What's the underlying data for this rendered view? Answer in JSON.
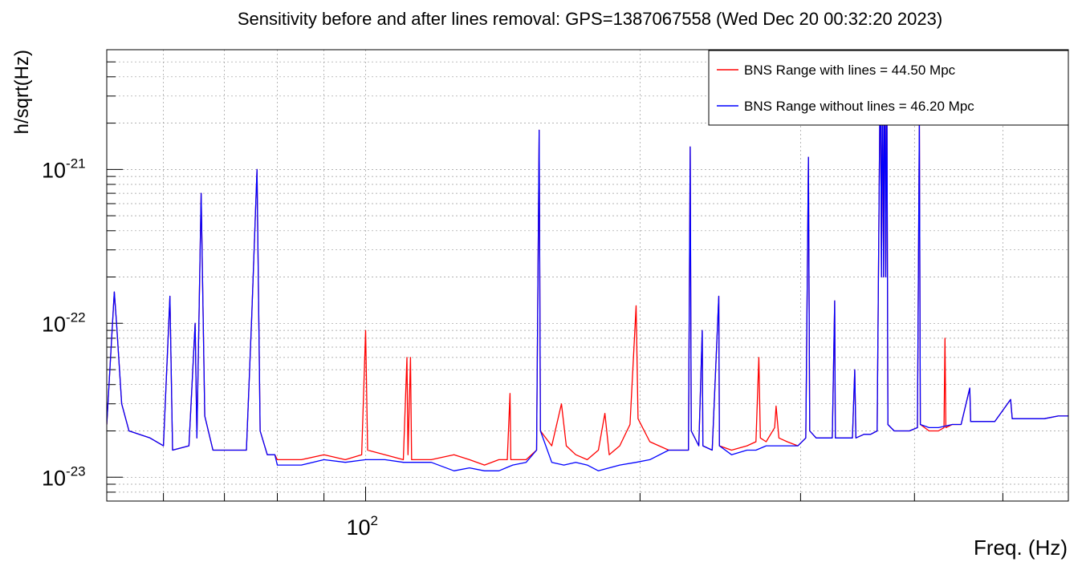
{
  "chart_data": {
    "type": "line",
    "title": "Sensitivity before and after lines removal: GPS=1387067558 (Wed Dec 20 00:32:20 2023)",
    "xlabel": "Freq. (Hz)",
    "ylabel": "h/sqrt(Hz)",
    "x_scale": "log",
    "y_scale": "log",
    "xlim": [
      52,
      590
    ],
    "ylim": [
      7e-24,
      6e-21
    ],
    "grid": true,
    "x_ticks": [
      {
        "value": 100,
        "base": "10",
        "exp": "2"
      }
    ],
    "y_ticks": [
      {
        "value": 1e-23,
        "base": "10",
        "exp": "-23"
      },
      {
        "value": 1e-22,
        "base": "10",
        "exp": "-22"
      },
      {
        "value": 1e-21,
        "base": "10",
        "exp": "-21"
      }
    ],
    "legend_position": "top-right",
    "series": [
      {
        "name": "BNS Range with lines = 44.50 Mpc",
        "color": "#ff0000",
        "points": [
          [
            52,
            2.2e-23
          ],
          [
            53,
            1.6e-22
          ],
          [
            53.3,
            1e-22
          ],
          [
            54,
            3e-23
          ],
          [
            55,
            2e-23
          ],
          [
            58,
            1.8e-23
          ],
          [
            60,
            1.6e-23
          ],
          [
            61,
            1.5e-22
          ],
          [
            61.4,
            1.5e-23
          ],
          [
            64,
            1.6e-23
          ],
          [
            65,
            1e-22
          ],
          [
            65.3,
            1.8e-23
          ],
          [
            66,
            7e-22
          ],
          [
            66.6,
            2.5e-23
          ],
          [
            68,
            1.5e-23
          ],
          [
            74,
            1.5e-23
          ],
          [
            75,
            1.1e-22
          ],
          [
            76,
            1e-21
          ],
          [
            76.6,
            2e-23
          ],
          [
            78,
            1.4e-23
          ],
          [
            79.5,
            1.4e-23
          ],
          [
            80,
            1.3e-23
          ],
          [
            85,
            1.3e-23
          ],
          [
            90,
            1.4e-23
          ],
          [
            95,
            1.3e-23
          ],
          [
            99,
            1.4e-23
          ],
          [
            100,
            9e-23
          ],
          [
            100.5,
            1.5e-23
          ],
          [
            105,
            1.4e-23
          ],
          [
            110,
            1.3e-23
          ],
          [
            111,
            6e-23
          ],
          [
            111.3,
            1.4e-23
          ],
          [
            112,
            6e-23
          ],
          [
            112.3,
            1.3e-23
          ],
          [
            118,
            1.3e-23
          ],
          [
            125,
            1.4e-23
          ],
          [
            130,
            1.3e-23
          ],
          [
            135,
            1.2e-23
          ],
          [
            140,
            1.3e-23
          ],
          [
            143,
            1.3e-23
          ],
          [
            144,
            3.5e-23
          ],
          [
            144.3,
            1.3e-23
          ],
          [
            150,
            1.3e-23
          ],
          [
            154,
            1.5e-23
          ],
          [
            155,
            1.8e-21
          ],
          [
            155.5,
            2e-23
          ],
          [
            160,
            1.6e-23
          ],
          [
            164,
            3e-23
          ],
          [
            166,
            1.6e-23
          ],
          [
            170,
            1.4e-23
          ],
          [
            175,
            1.3e-23
          ],
          [
            180,
            1.5e-23
          ],
          [
            183,
            2.6e-23
          ],
          [
            185,
            1.4e-23
          ],
          [
            190,
            1.6e-23
          ],
          [
            195,
            2.2e-23
          ],
          [
            198,
            1.3e-22
          ],
          [
            199,
            2.4e-23
          ],
          [
            205,
            1.7e-23
          ],
          [
            215,
            1.5e-23
          ],
          [
            220,
            1.5e-23
          ],
          [
            226,
            1.5e-23
          ],
          [
            227,
            1.4e-21
          ],
          [
            227.6,
            2e-23
          ],
          [
            232,
            1.6e-23
          ],
          [
            234,
            9e-23
          ],
          [
            234.4,
            1.6e-23
          ],
          [
            240,
            1.5e-23
          ],
          [
            244,
            1.5e-22
          ],
          [
            244.4,
            1.6e-23
          ],
          [
            252,
            1.5e-23
          ],
          [
            262,
            1.6e-23
          ],
          [
            268,
            1.7e-23
          ],
          [
            270,
            6e-23
          ],
          [
            271,
            1.8e-23
          ],
          [
            275,
            1.7e-23
          ],
          [
            281,
            2.1e-23
          ],
          [
            282,
            2.9e-23
          ],
          [
            284,
            1.8e-23
          ],
          [
            290,
            1.7e-23
          ],
          [
            298,
            1.6e-23
          ],
          [
            304,
            1.8e-23
          ],
          [
            306,
            1.2e-21
          ],
          [
            307,
            2e-23
          ],
          [
            312,
            1.8e-23
          ],
          [
            320,
            1.8e-23
          ],
          [
            325,
            1.8e-23
          ],
          [
            327,
            1.4e-22
          ],
          [
            327.5,
            1.8e-23
          ],
          [
            335,
            1.8e-23
          ],
          [
            342,
            1.8e-23
          ],
          [
            344,
            5e-23
          ],
          [
            345,
            1.8e-23
          ],
          [
            352,
            1.9e-23
          ],
          [
            358,
            1.9e-23
          ],
          [
            364,
            2e-23
          ],
          [
            367,
            6e-21
          ],
          [
            368,
            2e-22
          ],
          [
            369,
            6e-21
          ],
          [
            370,
            2e-22
          ],
          [
            371,
            6e-21
          ],
          [
            372,
            2e-22
          ],
          [
            373,
            6e-21
          ],
          [
            374,
            2.2e-23
          ],
          [
            380,
            2e-23
          ],
          [
            395,
            2e-23
          ],
          [
            403,
            2.1e-23
          ],
          [
            405,
            2.2e-21
          ],
          [
            406,
            2.2e-23
          ],
          [
            415,
            2e-23
          ],
          [
            425,
            2e-23
          ],
          [
            431,
            2.1e-23
          ],
          [
            432,
            8e-23
          ],
          [
            433,
            2.1e-23
          ],
          [
            440,
            2.2e-23
          ],
          [
            450,
            2.2e-23
          ],
          [
            460,
            3.8e-23
          ],
          [
            461,
            2.3e-23
          ],
          [
            475,
            2.3e-23
          ],
          [
            490,
            2.3e-23
          ],
          [
            510,
            3.2e-23
          ],
          [
            512,
            2.4e-23
          ],
          [
            530,
            2.4e-23
          ],
          [
            555,
            2.4e-23
          ],
          [
            575,
            2.5e-23
          ],
          [
            590,
            2.5e-23
          ]
        ]
      },
      {
        "name": "BNS Range without lines = 46.20 Mpc",
        "color": "#0000ff",
        "points": [
          [
            52,
            2.2e-23
          ],
          [
            53,
            1.6e-22
          ],
          [
            53.3,
            1e-22
          ],
          [
            54,
            3e-23
          ],
          [
            55,
            2e-23
          ],
          [
            58,
            1.8e-23
          ],
          [
            60,
            1.6e-23
          ],
          [
            61,
            1.5e-22
          ],
          [
            61.4,
            1.5e-23
          ],
          [
            64,
            1.6e-23
          ],
          [
            65,
            1e-22
          ],
          [
            65.3,
            1.8e-23
          ],
          [
            66,
            7e-22
          ],
          [
            66.6,
            2.5e-23
          ],
          [
            68,
            1.5e-23
          ],
          [
            74,
            1.5e-23
          ],
          [
            75,
            1.1e-22
          ],
          [
            76,
            1e-21
          ],
          [
            76.6,
            2e-23
          ],
          [
            78,
            1.4e-23
          ],
          [
            79.5,
            1.4e-23
          ],
          [
            80,
            1.2e-23
          ],
          [
            85,
            1.2e-23
          ],
          [
            90,
            1.3e-23
          ],
          [
            95,
            1.25e-23
          ],
          [
            100,
            1.3e-23
          ],
          [
            105,
            1.3e-23
          ],
          [
            110,
            1.25e-23
          ],
          [
            118,
            1.25e-23
          ],
          [
            125,
            1.1e-23
          ],
          [
            130,
            1.15e-23
          ],
          [
            135,
            1.1e-23
          ],
          [
            140,
            1.1e-23
          ],
          [
            145,
            1.2e-23
          ],
          [
            150,
            1.25e-23
          ],
          [
            154,
            1.5e-23
          ],
          [
            155,
            1.8e-21
          ],
          [
            155.5,
            2e-23
          ],
          [
            160,
            1.25e-23
          ],
          [
            165,
            1.2e-23
          ],
          [
            170,
            1.25e-23
          ],
          [
            175,
            1.2e-23
          ],
          [
            180,
            1.1e-23
          ],
          [
            185,
            1.15e-23
          ],
          [
            190,
            1.2e-23
          ],
          [
            198,
            1.25e-23
          ],
          [
            205,
            1.3e-23
          ],
          [
            215,
            1.5e-23
          ],
          [
            220,
            1.5e-23
          ],
          [
            226,
            1.5e-23
          ],
          [
            227,
            1.4e-21
          ],
          [
            227.6,
            2e-23
          ],
          [
            232,
            1.6e-23
          ],
          [
            234,
            9e-23
          ],
          [
            234.4,
            1.6e-23
          ],
          [
            240,
            1.5e-23
          ],
          [
            244,
            1.5e-22
          ],
          [
            244.4,
            1.6e-23
          ],
          [
            252,
            1.4e-23
          ],
          [
            262,
            1.5e-23
          ],
          [
            268,
            1.5e-23
          ],
          [
            275,
            1.6e-23
          ],
          [
            284,
            1.6e-23
          ],
          [
            290,
            1.6e-23
          ],
          [
            298,
            1.6e-23
          ],
          [
            304,
            1.8e-23
          ],
          [
            306,
            1.2e-21
          ],
          [
            307,
            2e-23
          ],
          [
            312,
            1.8e-23
          ],
          [
            320,
            1.8e-23
          ],
          [
            325,
            1.8e-23
          ],
          [
            327,
            1.4e-22
          ],
          [
            327.5,
            1.8e-23
          ],
          [
            335,
            1.8e-23
          ],
          [
            342,
            1.8e-23
          ],
          [
            344,
            5e-23
          ],
          [
            345,
            1.8e-23
          ],
          [
            352,
            1.9e-23
          ],
          [
            358,
            1.9e-23
          ],
          [
            364,
            2e-23
          ],
          [
            367,
            6e-21
          ],
          [
            368,
            2e-22
          ],
          [
            369,
            6e-21
          ],
          [
            370,
            2e-22
          ],
          [
            371,
            6e-21
          ],
          [
            372,
            2e-22
          ],
          [
            373,
            6e-21
          ],
          [
            374,
            2.2e-23
          ],
          [
            380,
            2e-23
          ],
          [
            395,
            2e-23
          ],
          [
            403,
            2.1e-23
          ],
          [
            405,
            2.2e-21
          ],
          [
            406,
            2.2e-23
          ],
          [
            415,
            2.1e-23
          ],
          [
            425,
            2.1e-23
          ],
          [
            440,
            2.2e-23
          ],
          [
            450,
            2.2e-23
          ],
          [
            460,
            3.8e-23
          ],
          [
            461,
            2.3e-23
          ],
          [
            475,
            2.3e-23
          ],
          [
            490,
            2.3e-23
          ],
          [
            510,
            3.2e-23
          ],
          [
            512,
            2.4e-23
          ],
          [
            530,
            2.4e-23
          ],
          [
            555,
            2.4e-23
          ],
          [
            575,
            2.5e-23
          ],
          [
            590,
            2.5e-23
          ]
        ]
      }
    ]
  }
}
